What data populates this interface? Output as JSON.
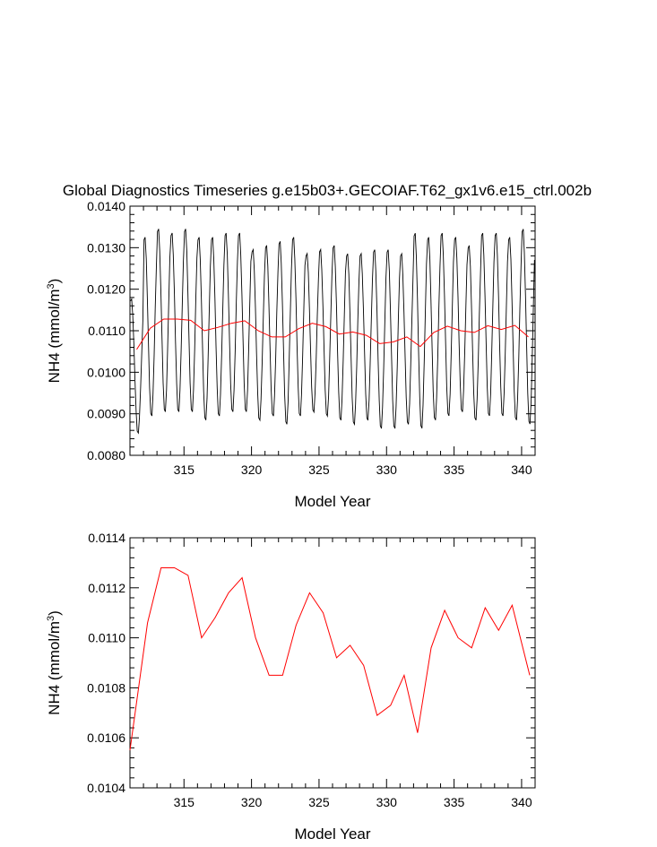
{
  "title": "Global Diagnostics Timeseries g.e15b03+.GECOIAF.T62_gx1v6.e15_ctrl.002b",
  "colors": {
    "monthly": "#000000",
    "annual": "#ff0000",
    "axis": "#000000",
    "background": "#ffffff"
  },
  "chart_data": [
    {
      "type": "line",
      "xlabel": "Model Year",
      "ylabel": "NH4 (mmol/m",
      "ylabel_sup": "3",
      "ylabel_close": ")",
      "xlim": [
        311.0,
        341.0
      ],
      "ylim": [
        0.008,
        0.014
      ],
      "xticks": [
        315,
        320,
        325,
        330,
        335,
        340
      ],
      "yticks": [
        "0.0080",
        "0.0090",
        "0.0100",
        "0.0110",
        "0.0120",
        "0.0130",
        "0.0140"
      ],
      "series": [
        {
          "kind": "monthly",
          "x_start": 311.04,
          "x_step": 0.0833333,
          "annual_peak": [
            0.0118,
            0.0133,
            0.0135,
            0.0134,
            0.0135,
            0.0133,
            0.0133,
            0.0134,
            0.0134,
            0.013,
            0.0131,
            0.0132,
            0.0133,
            0.0129,
            0.013,
            0.0131,
            0.0129,
            0.0129,
            0.013,
            0.013,
            0.0129,
            0.0134,
            0.0133,
            0.0134,
            0.0133,
            0.0131,
            0.0134,
            0.0134,
            0.0133,
            0.0135
          ],
          "annual_trough": [
            0.0085,
            0.0089,
            0.009,
            0.009,
            0.009,
            0.0088,
            0.0089,
            0.009,
            0.009,
            0.0088,
            0.0089,
            0.0087,
            0.0089,
            0.009,
            0.0089,
            0.0088,
            0.0087,
            0.0088,
            0.0086,
            0.0086,
            0.0087,
            0.0086,
            0.0088,
            0.0089,
            0.009,
            0.0088,
            0.0089,
            0.0089,
            0.0088,
            0.0087
          ]
        },
        {
          "kind": "annual",
          "x": [
            311.5,
            312.5,
            313.5,
            314.5,
            315.5,
            316.5,
            317.5,
            318.5,
            319.5,
            320.5,
            321.5,
            322.5,
            323.5,
            324.5,
            325.5,
            326.5,
            327.5,
            328.5,
            329.5,
            330.5,
            331.5,
            332.5,
            333.5,
            334.5,
            335.5,
            336.5,
            337.5,
            338.5,
            339.5,
            340.5
          ],
          "y": [
            0.01055,
            0.01106,
            0.01128,
            0.01128,
            0.01125,
            0.011,
            0.01108,
            0.01118,
            0.01124,
            0.011,
            0.01085,
            0.01085,
            0.01105,
            0.01118,
            0.0111,
            0.01092,
            0.01097,
            0.01089,
            0.01069,
            0.01073,
            0.01085,
            0.01062,
            0.01096,
            0.01111,
            0.011,
            0.01096,
            0.01112,
            0.01103,
            0.01113,
            0.01085
          ]
        }
      ]
    },
    {
      "type": "line",
      "xlabel": "Model Year",
      "ylabel": "NH4 (mmol/m",
      "ylabel_sup": "3",
      "ylabel_close": ")",
      "xlim": [
        311.0,
        341.0
      ],
      "ylim": [
        0.0104,
        0.0114
      ],
      "xticks": [
        315,
        320,
        325,
        330,
        335,
        340
      ],
      "yticks": [
        "0.0104",
        "0.0106",
        "0.0108",
        "0.0110",
        "0.0112",
        "0.0114"
      ],
      "series": [
        {
          "kind": "annual",
          "x": [
            311.0,
            312.3,
            313.3,
            314.3,
            315.3,
            316.3,
            317.3,
            318.3,
            319.3,
            320.3,
            321.3,
            322.3,
            323.3,
            324.3,
            325.3,
            326.3,
            327.3,
            328.3,
            329.3,
            330.3,
            331.3,
            332.3,
            333.3,
            334.3,
            335.3,
            336.3,
            337.3,
            338.3,
            339.3,
            340.6
          ],
          "y": [
            0.01055,
            0.01106,
            0.01128,
            0.01128,
            0.01125,
            0.011,
            0.01108,
            0.01118,
            0.01124,
            0.011,
            0.01085,
            0.01085,
            0.01105,
            0.01118,
            0.0111,
            0.01092,
            0.01097,
            0.01089,
            0.01069,
            0.01073,
            0.01085,
            0.01062,
            0.01096,
            0.01111,
            0.011,
            0.01096,
            0.01112,
            0.01103,
            0.01113,
            0.01085
          ]
        }
      ]
    }
  ]
}
